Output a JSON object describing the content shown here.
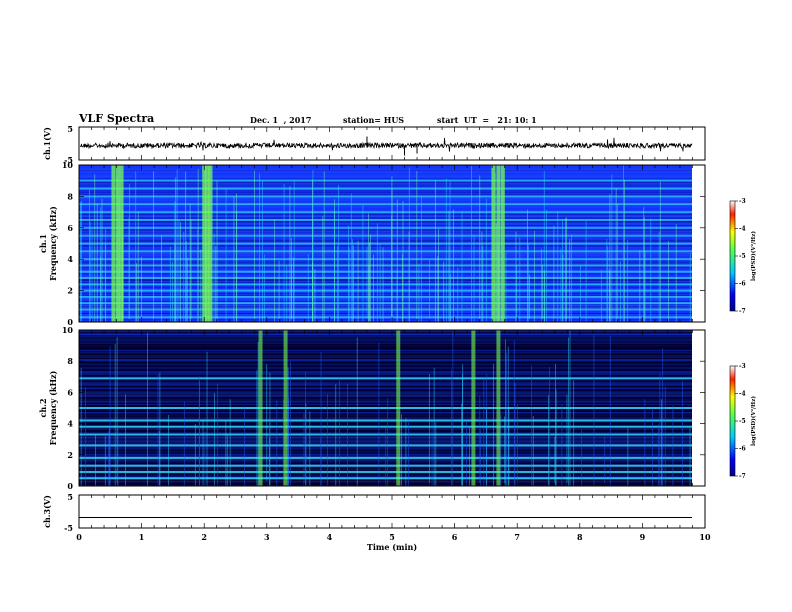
{
  "header": {
    "title": "VLF Spectra",
    "date": "Dec. 1  , 2017",
    "station": "station= HUS",
    "start": "start  UT  =   21: 10: 1"
  },
  "colors": {
    "background_dark": "#00003c",
    "spectrum_blue": "#1432ff",
    "spectrum_cyan": "#30d8ff",
    "spectrum_green": "#78ff50",
    "trace": "#000000"
  },
  "chart_data": [
    {
      "type": "line",
      "panel": "ch1-waveform",
      "ylabel": "ch.1(V)",
      "yticks": [
        "5",
        "-5"
      ],
      "ylim": [
        -5,
        5
      ],
      "xlim": [
        0,
        10
      ],
      "series": [
        {
          "values_desc": "noise around 0 V",
          "level": 0.0
        }
      ]
    },
    {
      "type": "heatmap",
      "panel": "ch1-spectrogram",
      "ylabel": "ch.1\nFrequency (kHz)",
      "yticks": [
        "0",
        "2",
        "4",
        "6",
        "8",
        "10"
      ],
      "ylim": [
        0,
        10
      ],
      "xlim": [
        0,
        9.83
      ],
      "colorbar": {
        "label": "log(PSD)(V²/Hz)",
        "ticks": [
          "-3",
          "-4",
          "-5",
          "-6",
          "-7"
        ],
        "range": [
          -7,
          -3
        ]
      },
      "bands_khz": [
        0.3,
        0.8,
        1.2,
        1.6,
        2.0,
        2.4,
        2.8,
        3.2,
        3.6,
        4.0,
        4.5,
        5.0,
        5.5,
        6.0,
        6.5,
        7.0,
        7.5,
        8.0,
        8.5,
        9.0
      ],
      "bright_bursts_min": [
        0.55,
        0.62,
        0.68,
        2.0,
        2.05,
        2.1,
        6.62,
        6.7,
        6.77
      ]
    },
    {
      "type": "heatmap",
      "panel": "ch2-spectrogram",
      "ylabel": "ch.2\nFrequency (kHz)",
      "yticks": [
        "0",
        "2",
        "4",
        "6",
        "8",
        "10"
      ],
      "ylim": [
        0,
        10
      ],
      "xlim": [
        0,
        9.83
      ],
      "colorbar": {
        "label": "log(PSD)(V²/Hz)",
        "ticks": [
          "-3",
          "-4",
          "-5",
          "-6",
          "-7"
        ],
        "range": [
          -7,
          -3
        ]
      },
      "bands_khz": [
        0.5,
        0.9,
        1.3,
        1.8,
        2.6,
        3.3,
        3.8,
        4.2,
        5.0,
        6.9
      ],
      "bright_bursts_min": [
        2.9,
        3.3,
        5.1,
        6.3,
        6.7
      ]
    },
    {
      "type": "line",
      "panel": "ch3-waveform",
      "ylabel": "ch.3(V)",
      "yticks": [
        "5",
        "-5"
      ],
      "ylim": [
        -5,
        5
      ],
      "xlim": [
        0,
        10
      ],
      "xlabel": "Time  (min)",
      "xticks": [
        "0",
        "1",
        "2",
        "3",
        "4",
        "5",
        "6",
        "7",
        "8",
        "9",
        "10"
      ],
      "series": [
        {
          "values_desc": "flat",
          "level": -1.8
        }
      ]
    }
  ]
}
